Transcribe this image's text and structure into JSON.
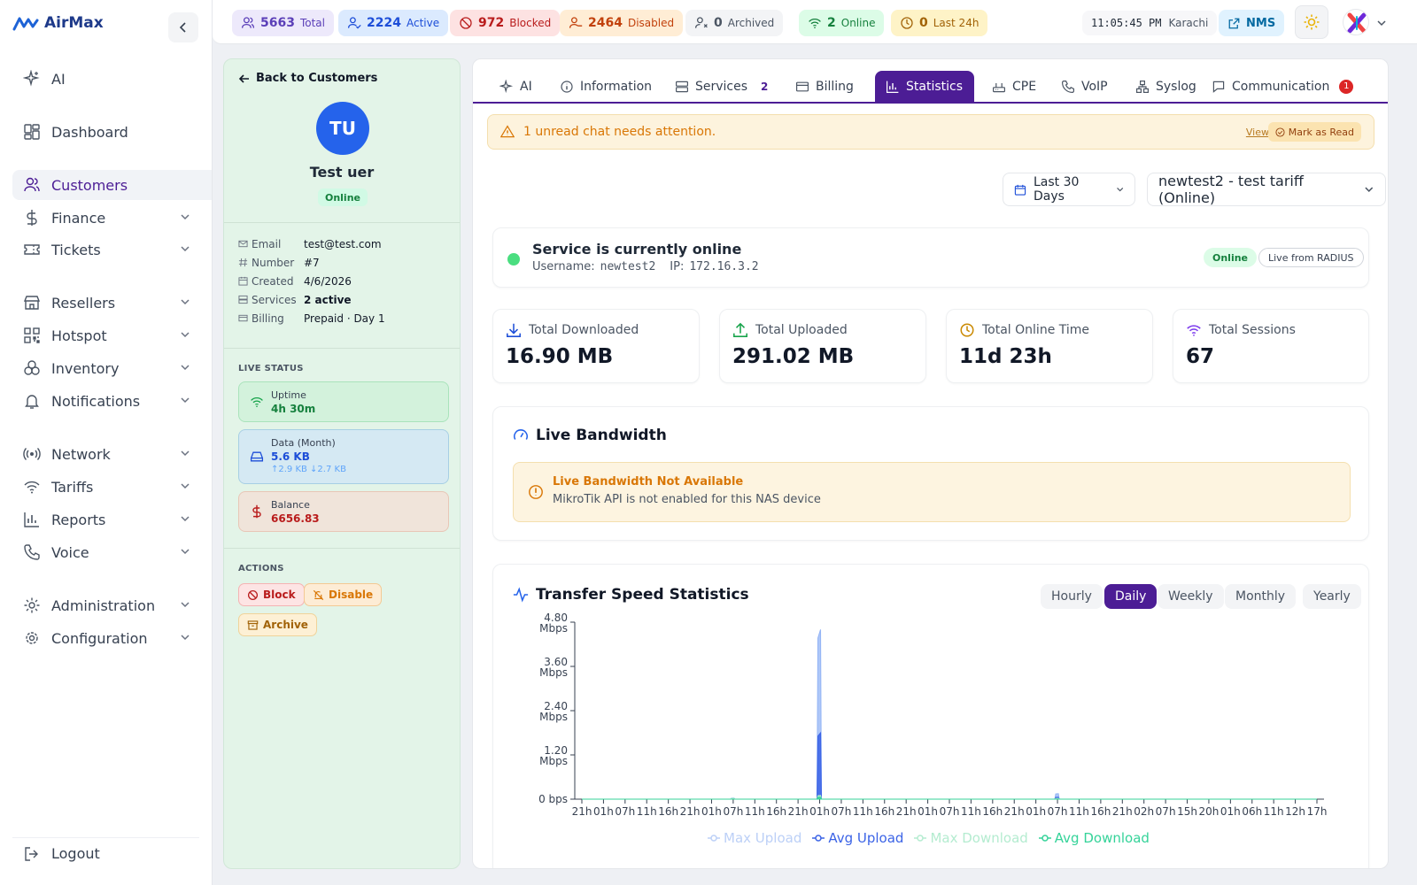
{
  "brand": {
    "name": "AirMax"
  },
  "sidebar": {
    "items": [
      {
        "label": "AI"
      },
      {
        "label": "Dashboard"
      },
      {
        "label": "Customers"
      },
      {
        "label": "Finance"
      },
      {
        "label": "Tickets"
      },
      {
        "label": "Resellers"
      },
      {
        "label": "Hotspot"
      },
      {
        "label": "Inventory"
      },
      {
        "label": "Notifications"
      },
      {
        "label": "Network"
      },
      {
        "label": "Tariffs"
      },
      {
        "label": "Reports"
      },
      {
        "label": "Voice"
      },
      {
        "label": "Administration"
      },
      {
        "label": "Configuration"
      }
    ],
    "logout": "Logout"
  },
  "topbar": {
    "chips": [
      {
        "count": "5663",
        "label": "Total",
        "bg": "#ede9fb",
        "color": "#5b3fb8"
      },
      {
        "count": "2224",
        "label": "Active",
        "bg": "#dbeafe",
        "color": "#1d4ed8"
      },
      {
        "count": "972",
        "label": "Blocked",
        "bg": "#fde2e2",
        "color": "#b91c1c"
      },
      {
        "count": "2464",
        "label": "Disabled",
        "bg": "#ffedd5",
        "color": "#c2410c"
      },
      {
        "count": "0",
        "label": "Archived",
        "bg": "#f3f4f6",
        "color": "#4b5563"
      },
      {
        "count": "2",
        "label": "Online",
        "bg": "#dcfce7",
        "color": "#15803d"
      },
      {
        "count": "0",
        "label": "Last 24h",
        "bg": "#fef3c7",
        "color": "#a16207"
      }
    ],
    "time": "11:05:45 PM",
    "timezone": "Karachi",
    "nms": "NMS"
  },
  "customer": {
    "back": "Back to Customers",
    "initials": "TU",
    "name": "Test uer",
    "status": "Online",
    "info": [
      {
        "key": "Email",
        "value": "test@test.com"
      },
      {
        "key": "Number",
        "value": "#7"
      },
      {
        "key": "Created",
        "value": "4/6/2026"
      },
      {
        "key": "Services",
        "value": "2 active"
      },
      {
        "key": "Billing",
        "value": "Prepaid · Day 1"
      }
    ],
    "live_status_label": "LIVE STATUS",
    "uptime_label": "Uptime",
    "uptime": "4h 30m",
    "data_label": "Data (Month)",
    "data": "5.6 KB",
    "data_split": "↑2.9 KB ↓2.7 KB",
    "balance_label": "Balance",
    "balance": "6656.83",
    "actions_label": "ACTIONS",
    "actions": {
      "block": "Block",
      "disable": "Disable",
      "archive": "Archive"
    }
  },
  "tabs": [
    {
      "label": "AI"
    },
    {
      "label": "Information"
    },
    {
      "label": "Services",
      "badge": "2"
    },
    {
      "label": "Billing"
    },
    {
      "label": "Statistics"
    },
    {
      "label": "CPE"
    },
    {
      "label": "VoIP"
    },
    {
      "label": "Syslog"
    },
    {
      "label": "Communication",
      "badge": "1"
    }
  ],
  "alert": {
    "text": "1 unread chat needs attention.",
    "view": "View",
    "mark": "Mark as Read"
  },
  "filters": {
    "range": "Last 30 Days",
    "service": "newtest2 - test tariff (Online)"
  },
  "service": {
    "title": "Service is currently online",
    "username_label": "Username:",
    "username": "newtest2",
    "ip_label": "IP:",
    "ip": "172.16.3.2",
    "status": "Online",
    "source": "Live from RADIUS"
  },
  "kpis": [
    {
      "label": "Total Downloaded",
      "value": "16.90 MB",
      "icon": "download-icon",
      "color": "#1d4ed8"
    },
    {
      "label": "Total Uploaded",
      "value": "291.02 MB",
      "icon": "upload-icon",
      "color": "#16a34a"
    },
    {
      "label": "Total Online Time",
      "value": "11d 23h",
      "icon": "clock-icon",
      "color": "#ca8a04"
    },
    {
      "label": "Total Sessions",
      "value": "67",
      "icon": "wifi-icon",
      "color": "#7c3aed"
    }
  ],
  "bandwidth": {
    "title": "Live Bandwidth",
    "warn_title": "Live Bandwidth Not Available",
    "warn_text": "MikroTik API is not enabled for this NAS device"
  },
  "transfer": {
    "title": "Transfer Speed Statistics",
    "periods": [
      "Hourly",
      "Daily",
      "Weekly",
      "Monthly",
      "Yearly"
    ],
    "active_period": "Daily"
  },
  "chart_data": {
    "type": "area",
    "title": "",
    "y_ticks": [
      "4.80 Mbps",
      "3.60 Mbps",
      "2.40 Mbps",
      "1.20 Mbps",
      "0 bps"
    ],
    "ylim": [
      0,
      4.8
    ],
    "y_unit": "Mbps",
    "categories": [
      "21h",
      "01h",
      "07h",
      "11h",
      "16h",
      "21h",
      "01h",
      "07h",
      "11h",
      "16h",
      "21h",
      "01h",
      "07h",
      "11h",
      "16h",
      "21h",
      "01h",
      "07h",
      "11h",
      "16h",
      "21h",
      "01h",
      "07h",
      "11h",
      "16h",
      "21h",
      "02h",
      "07h",
      "15h",
      "20h",
      "01h",
      "06h",
      "11h",
      "12h",
      "17h"
    ],
    "series": [
      {
        "name": "Max Upload",
        "color": "#93b4f5",
        "values": [
          0,
          0,
          0,
          0,
          0,
          0,
          0,
          0.03,
          0,
          0,
          0,
          4.6,
          0,
          0,
          0,
          0,
          0,
          0,
          0,
          0,
          0,
          0,
          0.15,
          0,
          0,
          0,
          0,
          0,
          0,
          0,
          0,
          0,
          0,
          0,
          0
        ]
      },
      {
        "name": "Avg Upload",
        "color": "#3b63e6",
        "values": [
          0,
          0,
          0,
          0,
          0,
          0,
          0,
          0,
          0,
          0,
          0,
          1.8,
          0,
          0,
          0,
          0,
          0,
          0,
          0,
          0,
          0,
          0,
          0.05,
          0,
          0,
          0,
          0,
          0,
          0,
          0,
          0,
          0,
          0,
          0,
          0
        ]
      },
      {
        "name": "Max Download",
        "color": "#a7efc6",
        "values": [
          0,
          0,
          0,
          0,
          0,
          0,
          0,
          0.02,
          0,
          0,
          0,
          0.1,
          0,
          0,
          0,
          0,
          0,
          0,
          0,
          0,
          0,
          0,
          0.02,
          0,
          0,
          0,
          0,
          0,
          0,
          0,
          0,
          0,
          0,
          0,
          0
        ]
      },
      {
        "name": "Avg Download",
        "color": "#34d399",
        "values": [
          0,
          0,
          0,
          0,
          0,
          0,
          0,
          0,
          0,
          0,
          0,
          0.05,
          0,
          0,
          0,
          0,
          0,
          0,
          0,
          0,
          0,
          0,
          0,
          0,
          0,
          0,
          0,
          0,
          0,
          0,
          0,
          0,
          0,
          0,
          0
        ]
      }
    ],
    "legend_position": "bottom",
    "grid": false
  }
}
